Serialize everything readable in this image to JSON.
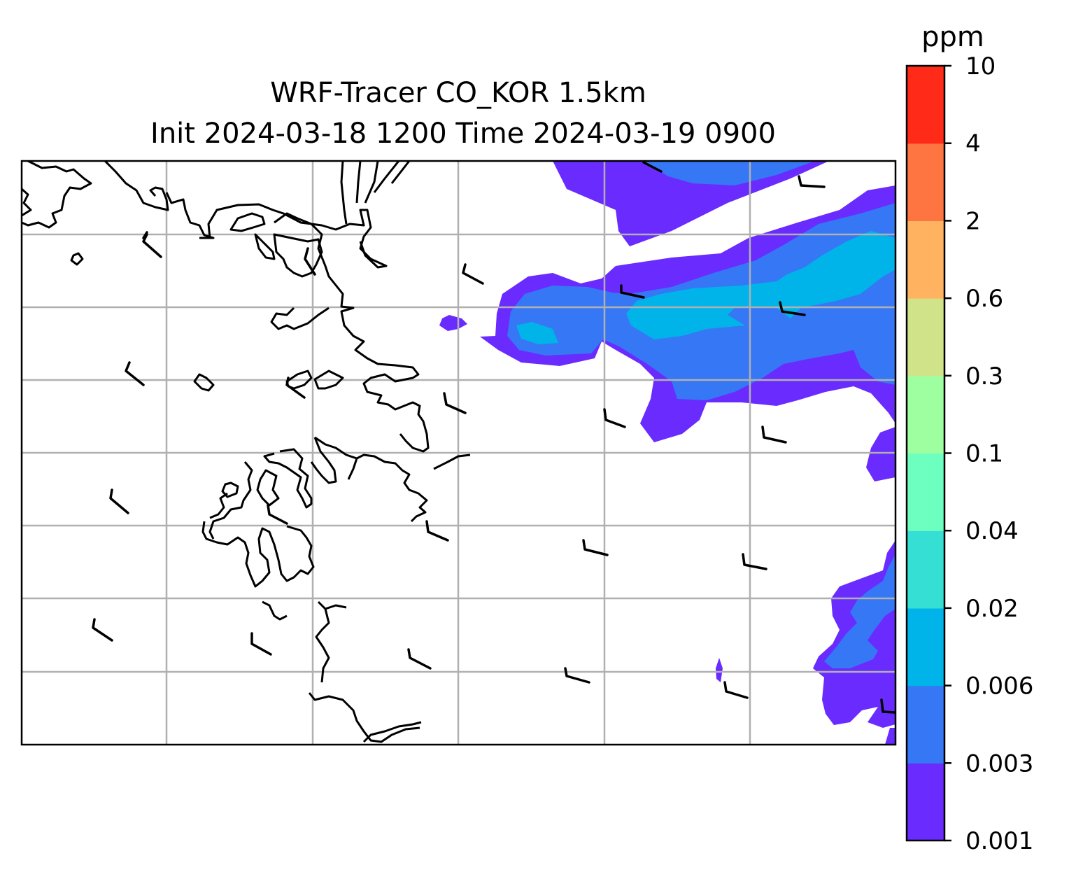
{
  "title_line1": "WRF-Tracer CO_KOR 1.5km",
  "title_line2": "Init 2024-03-18 1200 Time 2024-03-19 0900",
  "colorbar": {
    "unit": "ppm",
    "levels": [
      "0.001",
      "0.003",
      "0.006",
      "0.02",
      "0.04",
      "0.1",
      "0.3",
      "0.6",
      "2",
      "4",
      "10"
    ],
    "colors": [
      "#6a2bff",
      "#3677f5",
      "#00b4ea",
      "#35dfd3",
      "#6cffbf",
      "#9effa1",
      "#d1e388",
      "#ffb360",
      "#ff7541",
      "#ff2a18"
    ]
  },
  "map": {
    "type": "filled-contour",
    "field": "CO tracer concentration",
    "gridlines": true,
    "wind_barbs": true
  }
}
